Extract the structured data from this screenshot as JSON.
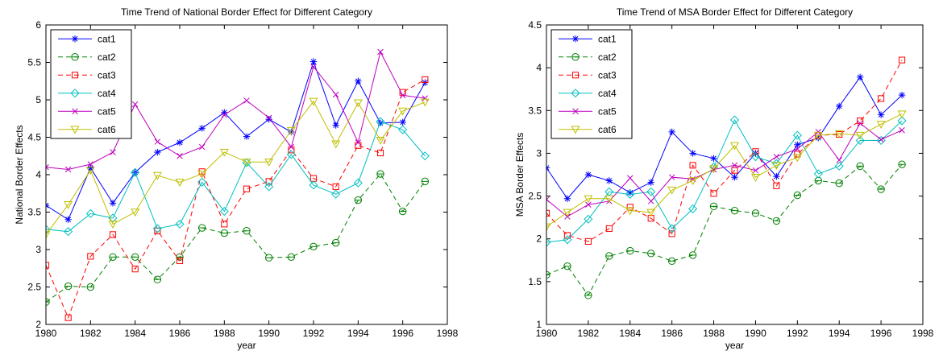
{
  "figure": {
    "background": "#ffffff"
  },
  "chart_data": [
    {
      "type": "line",
      "title": "Time Trend of National Border Effect for Different Category",
      "xlabel": "year",
      "ylabel": "National Border Effects",
      "xlim": [
        1980,
        1998
      ],
      "ylim": [
        2,
        6
      ],
      "xticks": [
        1980,
        1982,
        1984,
        1986,
        1988,
        1990,
        1992,
        1994,
        1996,
        1998
      ],
      "yticks": [
        2,
        2.5,
        3,
        3.5,
        4,
        4.5,
        5,
        5.5,
        6
      ],
      "ytick_labels": [
        "2",
        "2.5",
        "3",
        "3.5",
        "4",
        "4.5",
        "5",
        "5.5",
        "6"
      ],
      "legend_position": "top-left",
      "grid": false,
      "x": [
        1980,
        1981,
        1982,
        1983,
        1984,
        1985,
        1986,
        1987,
        1988,
        1989,
        1990,
        1991,
        1992,
        1993,
        1994,
        1995,
        1996,
        1997
      ],
      "series": [
        {
          "name": "cat1",
          "color": "#0000ff",
          "dash": "solid",
          "marker": "asterisk",
          "values": [
            3.59,
            3.4,
            4.09,
            3.62,
            4.03,
            4.3,
            4.43,
            4.62,
            4.83,
            4.51,
            4.74,
            4.57,
            5.51,
            4.66,
            5.25,
            4.69,
            4.7,
            5.23
          ]
        },
        {
          "name": "cat2",
          "color": "#008000",
          "dash": "dashed",
          "marker": "circle",
          "values": [
            2.3,
            2.51,
            2.5,
            2.9,
            2.9,
            2.6,
            2.9,
            3.29,
            3.22,
            3.25,
            2.89,
            2.9,
            3.04,
            3.09,
            3.66,
            4.01,
            3.51,
            3.91
          ]
        },
        {
          "name": "cat3",
          "color": "#ff0000",
          "dash": "dashed",
          "marker": "square",
          "values": [
            2.79,
            2.09,
            2.91,
            3.2,
            2.74,
            3.25,
            2.85,
            4.04,
            3.34,
            3.81,
            3.91,
            4.33,
            3.95,
            3.84,
            4.39,
            4.29,
            5.1,
            5.27
          ]
        },
        {
          "name": "cat4",
          "color": "#00bfbf",
          "dash": "solid",
          "marker": "diamond",
          "values": [
            3.27,
            3.24,
            3.48,
            3.42,
            4.03,
            3.28,
            3.34,
            3.9,
            3.51,
            4.16,
            3.84,
            4.27,
            3.86,
            3.74,
            3.89,
            4.71,
            4.6,
            4.25
          ]
        },
        {
          "name": "cat5",
          "color": "#bf00bf",
          "dash": "solid",
          "marker": "x",
          "values": [
            4.1,
            4.07,
            4.14,
            4.3,
            4.94,
            4.44,
            4.25,
            4.37,
            4.8,
            4.99,
            4.76,
            4.37,
            5.44,
            5.07,
            4.43,
            5.64,
            5.06,
            5.02
          ]
        },
        {
          "name": "cat6",
          "color": "#bfbf00",
          "dash": "solid",
          "marker": "triangle-down",
          "values": [
            3.2,
            3.6,
            4.06,
            3.34,
            3.5,
            3.99,
            3.9,
            4.01,
            4.3,
            4.17,
            4.17,
            4.59,
            4.98,
            4.41,
            4.96,
            4.46,
            4.85,
            4.97
          ]
        }
      ]
    },
    {
      "type": "line",
      "title": "Time Trend of MSA Border Effect for Different Category",
      "xlabel": "year",
      "ylabel": "MSA Border Effects",
      "xlim": [
        1980,
        1998
      ],
      "ylim": [
        1,
        4.5
      ],
      "xticks": [
        1980,
        1982,
        1984,
        1986,
        1988,
        1990,
        1992,
        1994,
        1996,
        1998
      ],
      "yticks": [
        1,
        1.5,
        2,
        2.5,
        3,
        3.5,
        4,
        4.5
      ],
      "ytick_labels": [
        "1",
        "1.5",
        "2",
        "2.5",
        "3",
        "3.5",
        "4",
        "4.5"
      ],
      "legend_position": "top-left",
      "grid": false,
      "x": [
        1980,
        1981,
        1982,
        1983,
        1984,
        1985,
        1986,
        1987,
        1988,
        1989,
        1990,
        1991,
        1992,
        1993,
        1994,
        1995,
        1996,
        1997
      ],
      "series": [
        {
          "name": "cat1",
          "color": "#0000ff",
          "dash": "solid",
          "marker": "asterisk",
          "values": [
            2.83,
            2.47,
            2.75,
            2.68,
            2.54,
            2.66,
            3.25,
            3.0,
            2.94,
            2.72,
            3.0,
            2.73,
            3.1,
            3.18,
            3.55,
            3.89,
            3.45,
            3.68
          ]
        },
        {
          "name": "cat2",
          "color": "#008000",
          "dash": "dashed",
          "marker": "circle",
          "values": [
            1.58,
            1.68,
            1.34,
            1.8,
            1.86,
            1.83,
            1.74,
            1.81,
            2.38,
            2.33,
            2.3,
            2.21,
            2.51,
            2.68,
            2.65,
            2.85,
            2.58,
            2.87
          ]
        },
        {
          "name": "cat3",
          "color": "#ff0000",
          "dash": "dashed",
          "marker": "square",
          "values": [
            2.3,
            2.04,
            1.97,
            2.12,
            2.37,
            2.24,
            2.06,
            2.86,
            2.53,
            2.8,
            3.02,
            2.62,
            2.99,
            3.21,
            3.22,
            3.38,
            3.64,
            4.09
          ]
        },
        {
          "name": "cat4",
          "color": "#00bfbf",
          "dash": "solid",
          "marker": "diamond",
          "values": [
            1.96,
            1.99,
            2.23,
            2.55,
            2.52,
            2.55,
            2.12,
            2.35,
            2.84,
            3.39,
            2.96,
            2.88,
            3.21,
            2.76,
            2.85,
            3.15,
            3.15,
            3.38
          ]
        },
        {
          "name": "cat5",
          "color": "#bf00bf",
          "dash": "solid",
          "marker": "x",
          "values": [
            2.46,
            2.26,
            2.4,
            2.44,
            2.71,
            2.44,
            2.72,
            2.7,
            2.81,
            2.86,
            2.8,
            2.96,
            3.05,
            3.25,
            2.92,
            3.35,
            3.16,
            3.27
          ]
        },
        {
          "name": "cat6",
          "color": "#bfbf00",
          "dash": "solid",
          "marker": "triangle-down",
          "values": [
            2.14,
            2.31,
            2.47,
            2.47,
            2.33,
            2.31,
            2.57,
            2.68,
            2.82,
            3.09,
            2.72,
            2.86,
            2.95,
            3.21,
            3.23,
            3.21,
            3.34,
            3.46
          ]
        }
      ]
    }
  ]
}
